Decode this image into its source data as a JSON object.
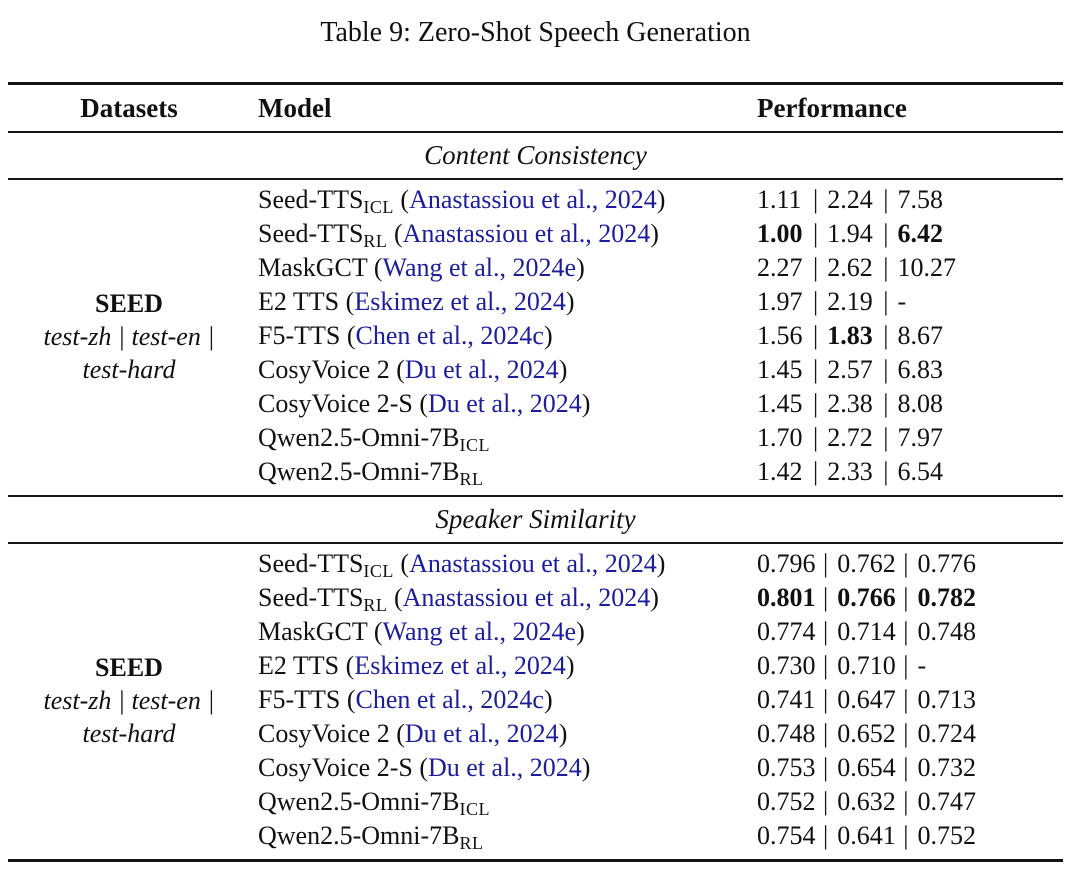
{
  "title": "Table 9: Zero-Shot Speech Generation",
  "colors": {
    "citation_link": "#1d1d99",
    "rule": "#151515"
  },
  "header": {
    "datasets": "Datasets",
    "model": "Model",
    "performance": "Performance"
  },
  "value_separator": "|",
  "sections": [
    {
      "label": "Content Consistency",
      "dataset": {
        "title": "SEED",
        "sub_lines": [
          "test-zh | test-en |",
          "test-hard"
        ]
      },
      "rows": [
        {
          "model": "Seed-TTS",
          "sub": "ICL",
          "cite": "Anastassiou et al., 2024",
          "values": [
            "1.11",
            "2.24",
            "7.58"
          ],
          "bold": [
            false,
            false,
            false
          ]
        },
        {
          "model": "Seed-TTS",
          "sub": "RL",
          "cite": "Anastassiou et al., 2024",
          "values": [
            "1.00",
            "1.94",
            "6.42"
          ],
          "bold": [
            true,
            false,
            true
          ]
        },
        {
          "model": "MaskGCT",
          "sub": null,
          "cite": "Wang et al., 2024e",
          "values": [
            "2.27",
            "2.62",
            "10.27"
          ],
          "bold": [
            false,
            false,
            false
          ]
        },
        {
          "model": "E2 TTS",
          "sub": null,
          "cite": "Eskimez et al., 2024",
          "values": [
            "1.97",
            "2.19",
            "-"
          ],
          "bold": [
            false,
            false,
            false
          ]
        },
        {
          "model": "F5-TTS",
          "sub": null,
          "cite": "Chen et al., 2024c",
          "values": [
            "1.56",
            "1.83",
            "8.67"
          ],
          "bold": [
            false,
            true,
            false
          ]
        },
        {
          "model": "CosyVoice 2",
          "sub": null,
          "cite": "Du et al., 2024",
          "values": [
            "1.45",
            "2.57",
            "6.83"
          ],
          "bold": [
            false,
            false,
            false
          ]
        },
        {
          "model": "CosyVoice 2-S",
          "sub": null,
          "cite": "Du et al., 2024",
          "values": [
            "1.45",
            "2.38",
            "8.08"
          ],
          "bold": [
            false,
            false,
            false
          ]
        },
        {
          "model": "Qwen2.5-Omni-7B",
          "sub": "ICL",
          "cite": null,
          "values": [
            "1.70",
            "2.72",
            "7.97"
          ],
          "bold": [
            false,
            false,
            false
          ]
        },
        {
          "model": "Qwen2.5-Omni-7B",
          "sub": "RL",
          "cite": null,
          "values": [
            "1.42",
            "2.33",
            "6.54"
          ],
          "bold": [
            false,
            false,
            false
          ]
        }
      ]
    },
    {
      "label": "Speaker Similarity",
      "dataset": {
        "title": "SEED",
        "sub_lines": [
          "test-zh | test-en |",
          "test-hard"
        ]
      },
      "rows": [
        {
          "model": "Seed-TTS",
          "sub": "ICL",
          "cite": "Anastassiou et al., 2024",
          "values": [
            "0.796",
            "0.762",
            "0.776"
          ],
          "bold": [
            false,
            false,
            false
          ]
        },
        {
          "model": "Seed-TTS",
          "sub": "RL",
          "cite": "Anastassiou et al., 2024",
          "values": [
            "0.801",
            "0.766",
            "0.782"
          ],
          "bold": [
            true,
            true,
            true
          ]
        },
        {
          "model": "MaskGCT",
          "sub": null,
          "cite": "Wang et al., 2024e",
          "values": [
            "0.774",
            "0.714",
            "0.748"
          ],
          "bold": [
            false,
            false,
            false
          ]
        },
        {
          "model": "E2 TTS",
          "sub": null,
          "cite": "Eskimez et al., 2024",
          "values": [
            "0.730",
            "0.710",
            "-"
          ],
          "bold": [
            false,
            false,
            false
          ]
        },
        {
          "model": "F5-TTS",
          "sub": null,
          "cite": "Chen et al., 2024c",
          "values": [
            "0.741",
            "0.647",
            "0.713"
          ],
          "bold": [
            false,
            false,
            false
          ]
        },
        {
          "model": "CosyVoice 2",
          "sub": null,
          "cite": "Du et al., 2024",
          "values": [
            "0.748",
            "0.652",
            "0.724"
          ],
          "bold": [
            false,
            false,
            false
          ]
        },
        {
          "model": "CosyVoice 2-S",
          "sub": null,
          "cite": "Du et al., 2024",
          "values": [
            "0.753",
            "0.654",
            "0.732"
          ],
          "bold": [
            false,
            false,
            false
          ]
        },
        {
          "model": "Qwen2.5-Omni-7B",
          "sub": "ICL",
          "cite": null,
          "values": [
            "0.752",
            "0.632",
            "0.747"
          ],
          "bold": [
            false,
            false,
            false
          ]
        },
        {
          "model": "Qwen2.5-Omni-7B",
          "sub": "RL",
          "cite": null,
          "values": [
            "0.754",
            "0.641",
            "0.752"
          ],
          "bold": [
            false,
            false,
            false
          ]
        }
      ]
    }
  ]
}
